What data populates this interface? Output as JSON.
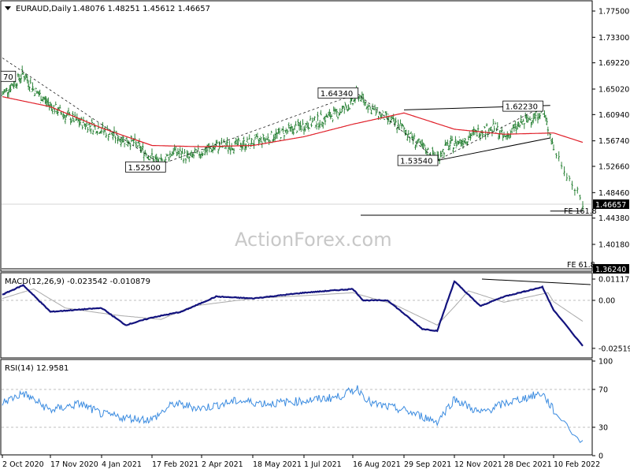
{
  "chart_data": {
    "type": "line",
    "header": {
      "symbol": "EURAUD,Daily",
      "ohlc": "1.48076 1.48251 1.45612 1.46657",
      "menu_icon": "triangle-down-icon"
    },
    "watermark": "ActionForex.com",
    "main": {
      "y_ticks": [
        "1.77500",
        "1.73300",
        "1.69220",
        "1.65020",
        "1.60940",
        "1.56740",
        "1.52660",
        "1.48460",
        "1.44380",
        "1.40180"
      ],
      "current_price": "1.46657",
      "fe_label_1": "FE 161.8",
      "fe_label_2": "FE 61.8",
      "fe_value_2": "1.36240",
      "annotations": [
        "70",
        "1.52500",
        "1.64340",
        "1.53540",
        "1.62230"
      ]
    },
    "macd": {
      "label": "MACD(12,26,9) -0.023542 -0.010879",
      "y_ticks": [
        "0.011172",
        "0.00",
        "-0.025195"
      ]
    },
    "rsi": {
      "label": "RSI(14) 12.9581",
      "y_ticks": [
        "100",
        "70",
        "30",
        "0"
      ]
    },
    "x_ticks": [
      "2 Oct 2020",
      "17 Nov 2020",
      "4 Jan 2021",
      "17 Feb 2021",
      "2 Apr 2021",
      "18 May 2021",
      "1 Jul 2021",
      "16 Aug 2021",
      "29 Sep 2021",
      "12 Nov 2021",
      "28 Dec 2021",
      "10 Feb 2022"
    ],
    "series": {
      "close": [
        [
          "2020-10-02",
          1.642
        ],
        [
          "2020-10-15",
          1.662
        ],
        [
          "2020-10-22",
          1.675
        ],
        [
          "2020-11-02",
          1.648
        ],
        [
          "2020-11-17",
          1.624
        ],
        [
          "2020-12-01",
          1.608
        ],
        [
          "2020-12-15",
          1.597
        ],
        [
          "2021-01-04",
          1.586
        ],
        [
          "2021-01-18",
          1.573
        ],
        [
          "2021-02-01",
          1.565
        ],
        [
          "2021-02-12",
          1.548
        ],
        [
          "2021-02-25",
          1.53
        ],
        [
          "2021-03-08",
          1.552
        ],
        [
          "2021-03-22",
          1.54
        ],
        [
          "2021-04-02",
          1.55
        ],
        [
          "2021-04-15",
          1.558
        ],
        [
          "2021-05-04",
          1.561
        ],
        [
          "2021-05-18",
          1.565
        ],
        [
          "2021-06-01",
          1.572
        ],
        [
          "2021-06-15",
          1.582
        ],
        [
          "2021-07-01",
          1.592
        ],
        [
          "2021-07-15",
          1.6
        ],
        [
          "2021-08-02",
          1.612
        ],
        [
          "2021-08-16",
          1.628
        ],
        [
          "2021-08-20",
          1.643
        ],
        [
          "2021-09-01",
          1.618
        ],
        [
          "2021-09-15",
          1.602
        ],
        [
          "2021-09-29",
          1.586
        ],
        [
          "2021-10-15",
          1.556
        ],
        [
          "2021-10-28",
          1.54
        ],
        [
          "2021-11-05",
          1.558
        ],
        [
          "2021-11-12",
          1.563
        ],
        [
          "2021-11-24",
          1.572
        ],
        [
          "2021-12-06",
          1.584
        ],
        [
          "2021-12-20",
          1.588
        ],
        [
          "2021-12-28",
          1.572
        ],
        [
          "2022-01-10",
          1.592
        ],
        [
          "2022-01-21",
          1.604
        ],
        [
          "2022-01-31",
          1.616
        ],
        [
          "2022-02-07",
          1.578
        ],
        [
          "2022-02-14",
          1.524
        ],
        [
          "2022-02-21",
          1.466
        ]
      ],
      "sma": [
        [
          "2020-10-02",
          1.638
        ],
        [
          "2020-11-17",
          1.622
        ],
        [
          "2021-01-04",
          1.588
        ],
        [
          "2021-02-17",
          1.56
        ],
        [
          "2021-04-02",
          1.558
        ],
        [
          "2021-05-18",
          1.56
        ],
        [
          "2021-07-01",
          1.574
        ],
        [
          "2021-08-16",
          1.594
        ],
        [
          "2021-09-29",
          1.612
        ],
        [
          "2021-11-12",
          1.586
        ],
        [
          "2021-12-28",
          1.578
        ],
        [
          "2022-02-10",
          1.58
        ],
        [
          "2022-02-21",
          1.565
        ]
      ],
      "macd": [
        [
          "2020-10-02",
          0.003
        ],
        [
          "2020-10-22",
          0.008
        ],
        [
          "2020-11-17",
          -0.006
        ],
        [
          "2021-01-04",
          -0.004
        ],
        [
          "2021-01-25",
          -0.013
        ],
        [
          "2021-02-17",
          -0.009
        ],
        [
          "2021-03-15",
          -0.006
        ],
        [
          "2021-04-15",
          0.002
        ],
        [
          "2021-05-18",
          0.001
        ],
        [
          "2021-07-01",
          0.004
        ],
        [
          "2021-08-16",
          0.006
        ],
        [
          "2021-08-25",
          0.0
        ],
        [
          "2021-09-15",
          0.0
        ],
        [
          "2021-10-15",
          -0.015
        ],
        [
          "2021-10-28",
          -0.016
        ],
        [
          "2021-11-12",
          0.01
        ],
        [
          "2021-12-06",
          -0.003
        ],
        [
          "2021-12-28",
          0.002
        ],
        [
          "2022-01-31",
          0.007
        ],
        [
          "2022-02-10",
          -0.005
        ],
        [
          "2022-02-21",
          -0.024
        ]
      ],
      "signal": [
        [
          "2020-10-02",
          0.001
        ],
        [
          "2020-11-01",
          0.006
        ],
        [
          "2020-12-01",
          -0.004
        ],
        [
          "2021-01-20",
          -0.008
        ],
        [
          "2021-02-25",
          -0.01
        ],
        [
          "2021-03-25",
          -0.003
        ],
        [
          "2021-05-18",
          0.001
        ],
        [
          "2021-08-16",
          0.004
        ],
        [
          "2021-09-20",
          -0.002
        ],
        [
          "2021-10-28",
          -0.013
        ],
        [
          "2021-11-25",
          0.005
        ],
        [
          "2021-12-28",
          -0.001
        ],
        [
          "2022-02-05",
          0.004
        ],
        [
          "2022-02-21",
          -0.011
        ]
      ],
      "rsi": [
        [
          "2020-10-02",
          56
        ],
        [
          "2020-10-22",
          66
        ],
        [
          "2020-11-17",
          48
        ],
        [
          "2020-12-15",
          55
        ],
        [
          "2021-01-04",
          44
        ],
        [
          "2021-01-25",
          40
        ],
        [
          "2021-02-17",
          38
        ],
        [
          "2021-03-08",
          55
        ],
        [
          "2021-04-02",
          50
        ],
        [
          "2021-05-04",
          58
        ],
        [
          "2021-06-01",
          55
        ],
        [
          "2021-07-01",
          58
        ],
        [
          "2021-08-02",
          62
        ],
        [
          "2021-08-20",
          71
        ],
        [
          "2021-09-01",
          55
        ],
        [
          "2021-09-29",
          48
        ],
        [
          "2021-10-28",
          36
        ],
        [
          "2021-11-12",
          60
        ],
        [
          "2021-12-06",
          45
        ],
        [
          "2021-12-28",
          55
        ],
        [
          "2022-01-31",
          66
        ],
        [
          "2022-02-10",
          48
        ],
        [
          "2022-02-21",
          13
        ]
      ]
    },
    "trendlines": [
      [
        "2021-09-29",
        1.617,
        "2022-02-07",
        1.624
      ],
      [
        "2021-10-28",
        1.536,
        "2022-02-07",
        1.572
      ],
      [
        "2022-02-07",
        1.455,
        "2022-02-21",
        1.455
      ]
    ],
    "colors": {
      "price": "#1c7a2a",
      "sma": "#e0202a",
      "macd": "#13137e",
      "signal": "#aaaaaa",
      "rsi": "#3a8be0"
    }
  }
}
